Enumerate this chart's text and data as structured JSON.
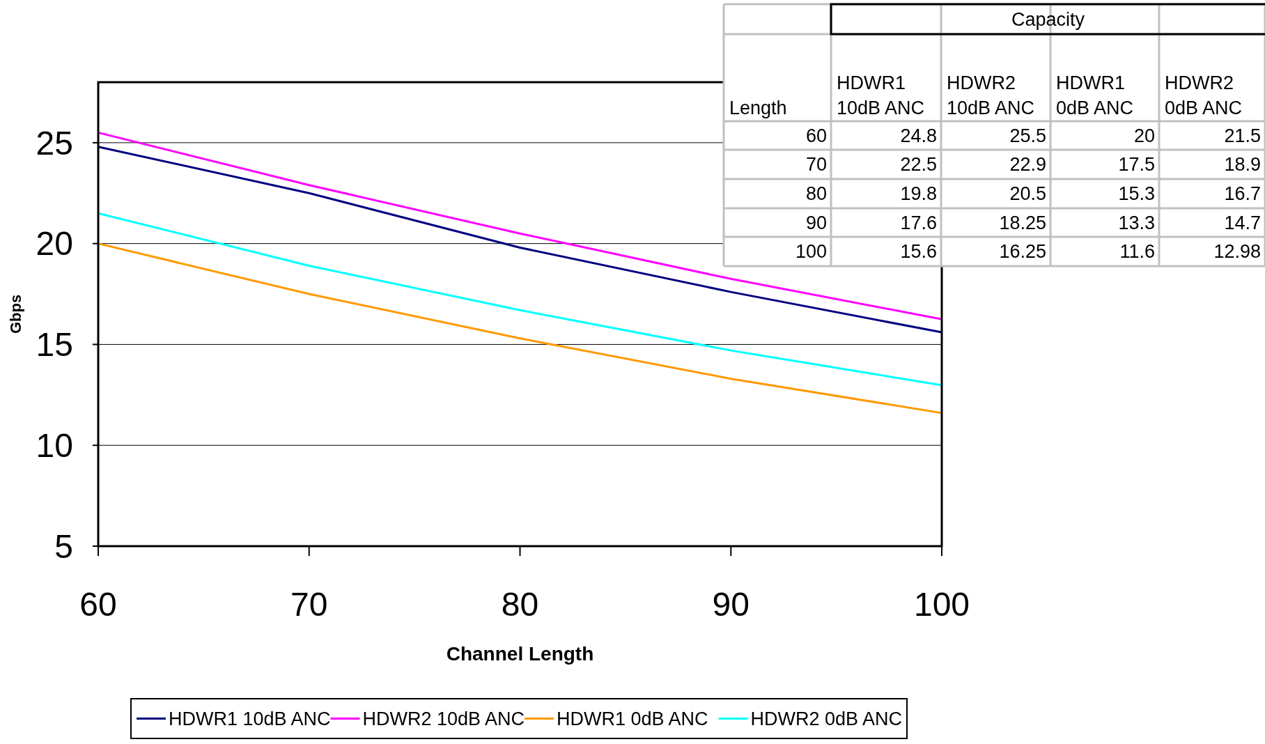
{
  "chart_data": [
    {
      "type": "line",
      "xlabel": "Channel Length",
      "ylabel": "Gbps",
      "x": [
        60,
        70,
        80,
        90,
        100
      ],
      "xlim": [
        60,
        100
      ],
      "xticks": [
        60,
        70,
        80,
        90,
        100
      ],
      "ylim": [
        5,
        28
      ],
      "yticks": [
        5,
        10,
        15,
        20,
        25
      ],
      "grid": "y",
      "legend": "bottom",
      "marker": "none",
      "line_style": "solid",
      "series": [
        {
          "name": "HDWR1 10dB ANC",
          "color": "#000080",
          "values": [
            24.8,
            22.5,
            19.8,
            17.6,
            15.6
          ]
        },
        {
          "name": "HDWR2 10dB ANC",
          "color": "#ff00ff",
          "values": [
            25.5,
            22.9,
            20.5,
            18.25,
            16.25
          ]
        },
        {
          "name": "HDWR1 0dB ANC",
          "color": "#ff9900",
          "values": [
            20,
            17.5,
            15.3,
            13.3,
            11.6
          ]
        },
        {
          "name": "HDWR2 0dB ANC",
          "color": "#00ffff",
          "values": [
            21.5,
            18.9,
            16.7,
            14.7,
            12.98
          ]
        }
      ]
    },
    {
      "type": "heatmap",
      "title": "Capacity",
      "ylabel": "Length",
      "categories": [
        "HDWR1 10dB ANC",
        "HDWR2 10dB ANC",
        "HDWR1 0dB ANC",
        "HDWR2 0dB ANC"
      ],
      "y_categories": [
        "60",
        "70",
        "80",
        "90",
        "100"
      ],
      "data_labels": true,
      "cells": [
        [
          24.8,
          25.5,
          20,
          21.5
        ],
        [
          22.5,
          22.9,
          17.5,
          18.9
        ],
        [
          19.8,
          20.5,
          15.3,
          16.7
        ],
        [
          17.6,
          18.25,
          13.3,
          14.7
        ],
        [
          15.6,
          16.25,
          11.6,
          12.98
        ]
      ]
    }
  ]
}
